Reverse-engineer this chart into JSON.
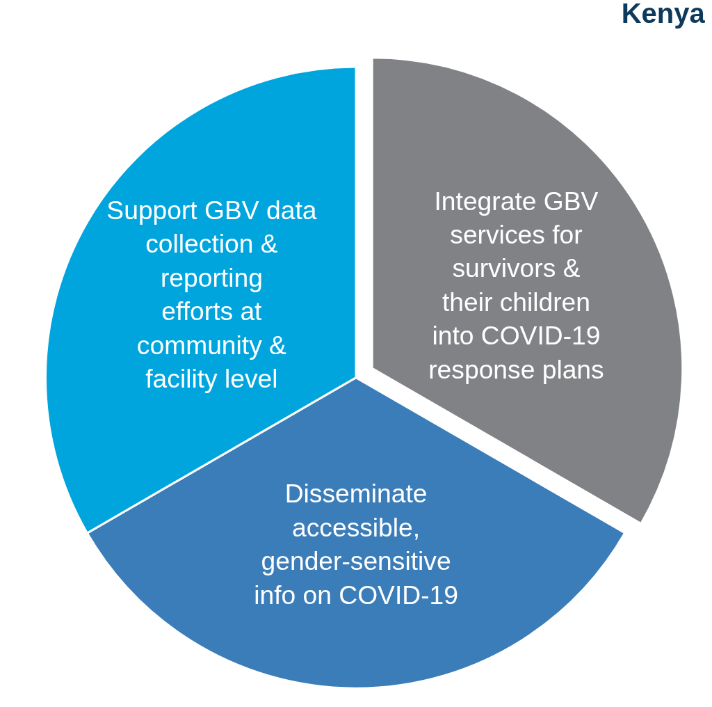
{
  "chart_data": {
    "type": "pie",
    "title": "Kenya",
    "categories": [
      "Integrate GBV services for survivors & their children into COVID-19 response plans",
      "Disseminate accessible, gender-sensitive info on COVID-19",
      "Support GBV data collection & reporting efforts at community & facility level"
    ],
    "values": [
      33.33,
      33.33,
      33.34
    ],
    "colors": [
      "#808285",
      "#3b7db9",
      "#00a5de"
    ],
    "legend": false
  }
}
